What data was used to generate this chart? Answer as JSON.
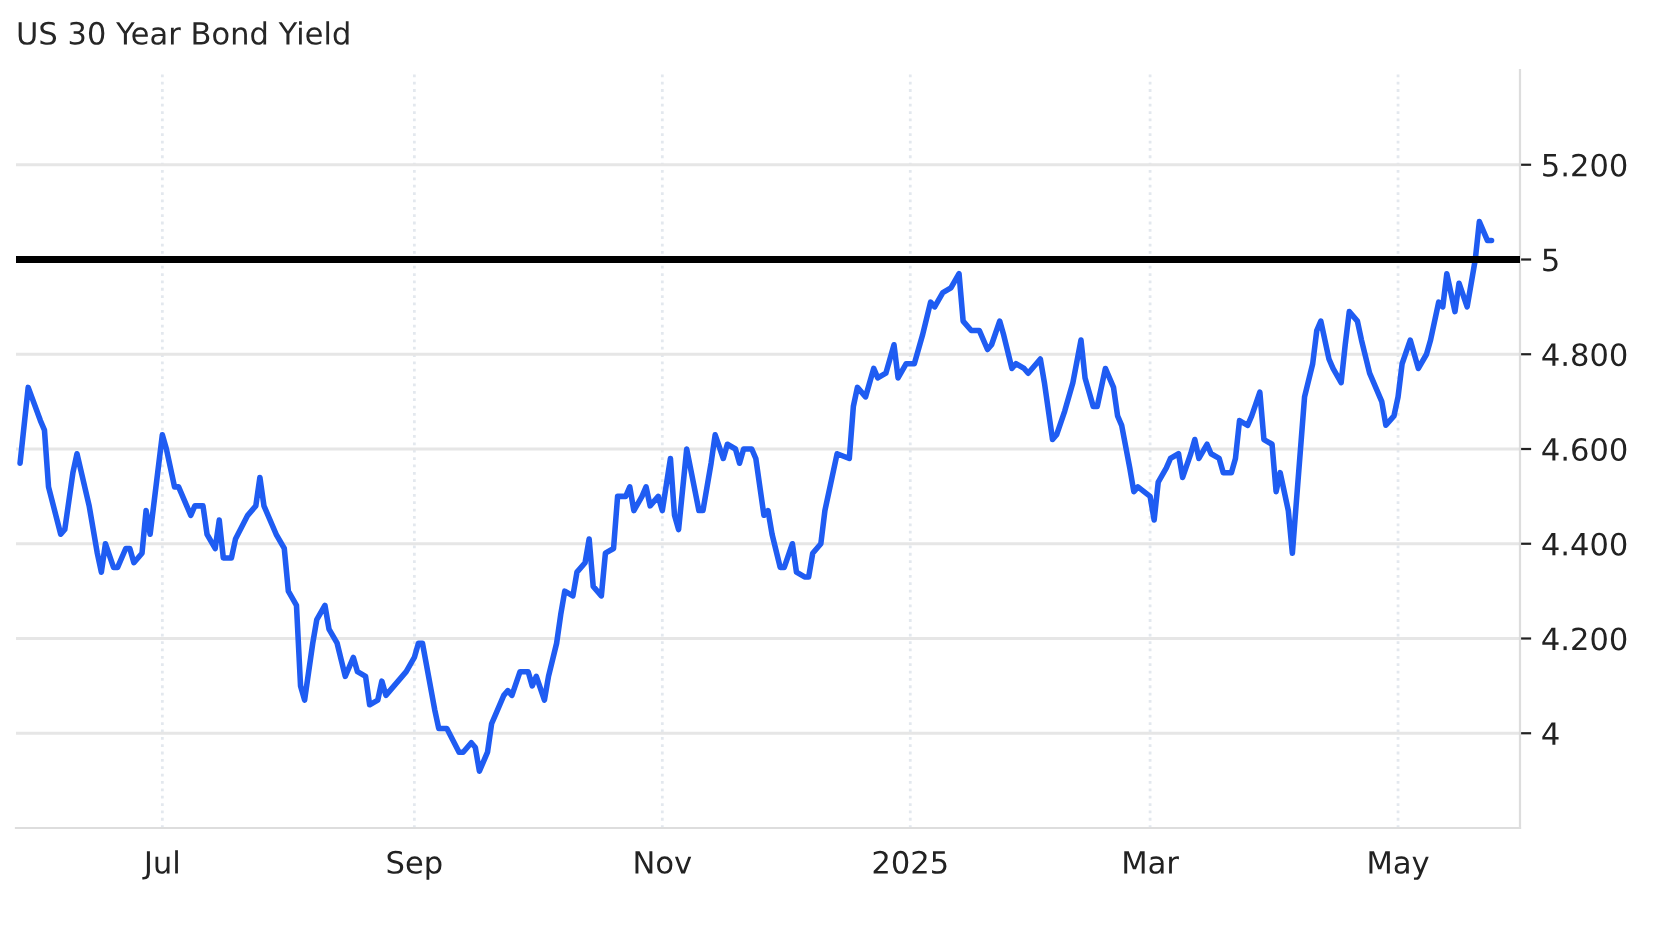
{
  "chart_data": {
    "type": "line",
    "title": "US 30 Year Bond Yield",
    "x": [
      "2024-05-27",
      "2024-05-29",
      "2024-06-01",
      "2024-06-02",
      "2024-06-03",
      "2024-06-06",
      "2024-06-07",
      "2024-06-09",
      "2024-06-10",
      "2024-06-13",
      "2024-06-15",
      "2024-06-16",
      "2024-06-17",
      "2024-06-19",
      "2024-06-20",
      "2024-06-22",
      "2024-06-23",
      "2024-06-24",
      "2024-06-26",
      "2024-06-27",
      "2024-06-28",
      "2024-06-30",
      "2024-07-01",
      "2024-07-02",
      "2024-07-04",
      "2024-07-05",
      "2024-07-07",
      "2024-07-08",
      "2024-07-09",
      "2024-07-11",
      "2024-07-12",
      "2024-07-14",
      "2024-07-15",
      "2024-07-16",
      "2024-07-18",
      "2024-07-19",
      "2024-07-22",
      "2024-07-24",
      "2024-07-25",
      "2024-07-26",
      "2024-07-29",
      "2024-07-31",
      "2024-08-01",
      "2024-08-03",
      "2024-08-04",
      "2024-08-05",
      "2024-08-07",
      "2024-08-08",
      "2024-08-10",
      "2024-08-11",
      "2024-08-13",
      "2024-08-15",
      "2024-08-17",
      "2024-08-18",
      "2024-08-20",
      "2024-08-21",
      "2024-08-23",
      "2024-08-24",
      "2024-08-25",
      "2024-08-29",
      "2024-08-30",
      "2024-09-01",
      "2024-09-02",
      "2024-09-03",
      "2024-09-06",
      "2024-09-07",
      "2024-09-09",
      "2024-09-12",
      "2024-09-13",
      "2024-09-15",
      "2024-09-16",
      "2024-09-17",
      "2024-09-19",
      "2024-09-20",
      "2024-09-21",
      "2024-09-23",
      "2024-09-24",
      "2024-09-25",
      "2024-09-27",
      "2024-09-29",
      "2024-09-30",
      "2024-10-01",
      "2024-10-03",
      "2024-10-04",
      "2024-10-06",
      "2024-10-07",
      "2024-10-08",
      "2024-10-10",
      "2024-10-11",
      "2024-10-13",
      "2024-10-14",
      "2024-10-15",
      "2024-10-17",
      "2024-10-18",
      "2024-10-20",
      "2024-10-21",
      "2024-10-23",
      "2024-10-24",
      "2024-10-25",
      "2024-10-27",
      "2024-10-28",
      "2024-10-29",
      "2024-10-31",
      "2024-11-01",
      "2024-11-03",
      "2024-11-04",
      "2024-11-05",
      "2024-11-07",
      "2024-11-10",
      "2024-11-11",
      "2024-11-13",
      "2024-11-14",
      "2024-11-16",
      "2024-11-17",
      "2024-11-19",
      "2024-11-20",
      "2024-11-21",
      "2024-11-23",
      "2024-11-24",
      "2024-11-26",
      "2024-11-27",
      "2024-11-28",
      "2024-11-30",
      "2024-12-01",
      "2024-12-03",
      "2024-12-04",
      "2024-12-06",
      "2024-12-07",
      "2024-12-08",
      "2024-12-10",
      "2024-12-11",
      "2024-12-14",
      "2024-12-17",
      "2024-12-18",
      "2024-12-19",
      "2024-12-21",
      "2024-12-23",
      "2024-12-24",
      "2024-12-26",
      "2024-12-28",
      "2024-12-29",
      "2024-12-31",
      "2025-01-02",
      "2025-01-03",
      "2025-01-04",
      "2025-01-06",
      "2025-01-07",
      "2025-01-09",
      "2025-01-11",
      "2025-01-13",
      "2025-01-14",
      "2025-01-16",
      "2025-01-18",
      "2025-01-20",
      "2025-01-21",
      "2025-01-23",
      "2025-01-24",
      "2025-01-26",
      "2025-01-27",
      "2025-01-29",
      "2025-01-30",
      "2025-02-01",
      "2025-02-02",
      "2025-02-03",
      "2025-02-05",
      "2025-02-06",
      "2025-02-08",
      "2025-02-10",
      "2025-02-12",
      "2025-02-13",
      "2025-02-15",
      "2025-02-16",
      "2025-02-18",
      "2025-02-20",
      "2025-02-21",
      "2025-02-22",
      "2025-02-24",
      "2025-02-25",
      "2025-02-26",
      "2025-03-01",
      "2025-03-02",
      "2025-03-03",
      "2025-03-05",
      "2025-03-06",
      "2025-03-08",
      "2025-03-09",
      "2025-03-11",
      "2025-03-12",
      "2025-03-13",
      "2025-03-15",
      "2025-03-16",
      "2025-03-18",
      "2025-03-19",
      "2025-03-21",
      "2025-03-22",
      "2025-03-23",
      "2025-03-25",
      "2025-03-26",
      "2025-03-28",
      "2025-03-29",
      "2025-03-31",
      "2025-04-01",
      "2025-04-02",
      "2025-04-04",
      "2025-04-05",
      "2025-04-07",
      "2025-04-08",
      "2025-04-10",
      "2025-04-11",
      "2025-04-12",
      "2025-04-14",
      "2025-04-15",
      "2025-04-17",
      "2025-04-18",
      "2025-04-19",
      "2025-04-21",
      "2025-04-22",
      "2025-04-24",
      "2025-04-25",
      "2025-04-27",
      "2025-04-28",
      "2025-04-30",
      "2025-05-01",
      "2025-05-02",
      "2025-05-04",
      "2025-05-05",
      "2025-05-06",
      "2025-05-08",
      "2025-05-09",
      "2025-05-11",
      "2025-05-12",
      "2025-05-13",
      "2025-05-15",
      "2025-05-16",
      "2025-05-18",
      "2025-05-20",
      "2025-05-21",
      "2025-05-23",
      "2025-05-24"
    ],
    "series": [
      {
        "color": "#1f5cf2",
        "values": [
          4.57,
          4.73,
          4.66,
          4.64,
          4.52,
          4.42,
          4.43,
          4.55,
          4.59,
          4.48,
          4.38,
          4.34,
          4.4,
          4.35,
          4.35,
          4.39,
          4.39,
          4.36,
          4.38,
          4.47,
          4.42,
          4.56,
          4.63,
          4.6,
          4.52,
          4.52,
          4.48,
          4.46,
          4.48,
          4.48,
          4.42,
          4.39,
          4.45,
          4.37,
          4.37,
          4.41,
          4.46,
          4.48,
          4.54,
          4.48,
          4.42,
          4.39,
          4.3,
          4.27,
          4.1,
          4.07,
          4.19,
          4.24,
          4.27,
          4.22,
          4.19,
          4.12,
          4.16,
          4.13,
          4.12,
          4.06,
          4.07,
          4.11,
          4.08,
          4.12,
          4.13,
          4.16,
          4.19,
          4.19,
          4.05,
          4.01,
          4.01,
          3.96,
          3.96,
          3.98,
          3.97,
          3.92,
          3.96,
          4.02,
          4.04,
          4.08,
          4.09,
          4.08,
          4.13,
          4.13,
          4.1,
          4.12,
          4.07,
          4.12,
          4.19,
          4.25,
          4.3,
          4.29,
          4.34,
          4.36,
          4.41,
          4.31,
          4.29,
          4.38,
          4.39,
          4.5,
          4.5,
          4.52,
          4.47,
          4.5,
          4.52,
          4.48,
          4.5,
          4.47,
          4.58,
          4.46,
          4.43,
          4.6,
          4.47,
          4.47,
          4.57,
          4.63,
          4.58,
          4.61,
          4.6,
          4.57,
          4.6,
          4.6,
          4.58,
          4.46,
          4.47,
          4.42,
          4.35,
          4.35,
          4.4,
          4.34,
          4.33,
          4.33,
          4.38,
          4.4,
          4.47,
          4.59,
          4.58,
          4.69,
          4.73,
          4.71,
          4.77,
          4.75,
          4.76,
          4.82,
          4.75,
          4.78,
          4.78,
          4.81,
          4.84,
          4.91,
          4.9,
          4.93,
          4.94,
          4.97,
          4.87,
          4.85,
          4.85,
          4.81,
          4.82,
          4.87,
          4.84,
          4.77,
          4.78,
          4.77,
          4.76,
          4.78,
          4.79,
          4.74,
          4.62,
          4.63,
          4.68,
          4.74,
          4.83,
          4.75,
          4.69,
          4.69,
          4.77,
          4.73,
          4.67,
          4.65,
          4.56,
          4.51,
          4.52,
          4.5,
          4.45,
          4.53,
          4.56,
          4.58,
          4.59,
          4.54,
          4.59,
          4.62,
          4.58,
          4.61,
          4.59,
          4.58,
          4.55,
          4.55,
          4.58,
          4.66,
          4.65,
          4.67,
          4.72,
          4.62,
          4.61,
          4.51,
          4.55,
          4.47,
          4.38,
          4.6,
          4.71,
          4.78,
          4.85,
          4.87,
          4.79,
          4.77,
          4.74,
          4.82,
          4.89,
          4.87,
          4.83,
          4.76,
          4.74,
          4.7,
          4.65,
          4.67,
          4.71,
          4.78,
          4.83,
          4.8,
          4.77,
          4.8,
          4.83,
          4.91,
          4.9,
          4.97,
          4.89,
          4.95,
          4.9,
          5.0,
          5.08,
          5.04,
          5.04
        ]
      }
    ],
    "xlim": [
      "2024-05-26",
      "2025-05-31"
    ],
    "xticks": [
      {
        "value": "2024-07-01",
        "label": "Jul"
      },
      {
        "value": "2024-09-01",
        "label": "Sep"
      },
      {
        "value": "2024-11-01",
        "label": "Nov"
      },
      {
        "value": "2025-01-01",
        "label": "2025"
      },
      {
        "value": "2025-03-01",
        "label": "Mar"
      },
      {
        "value": "2025-05-01",
        "label": "May"
      }
    ],
    "ylim": [
      3.8,
      5.4
    ],
    "yticks": [
      4,
      {
        "value": 4.2,
        "label": "4.200"
      },
      {
        "value": 4.4,
        "label": "4.400"
      },
      {
        "value": 4.6,
        "label": "4.600"
      },
      {
        "value": 4.8,
        "label": "4.800"
      },
      5,
      {
        "value": 5.2,
        "label": "5.200"
      }
    ],
    "ref_lines": [
      {
        "axis": "y",
        "value": 5,
        "color": "#000000",
        "line_style": "solid"
      }
    ],
    "grid": true,
    "legend": false,
    "marker": "none",
    "line_style": "solid"
  }
}
